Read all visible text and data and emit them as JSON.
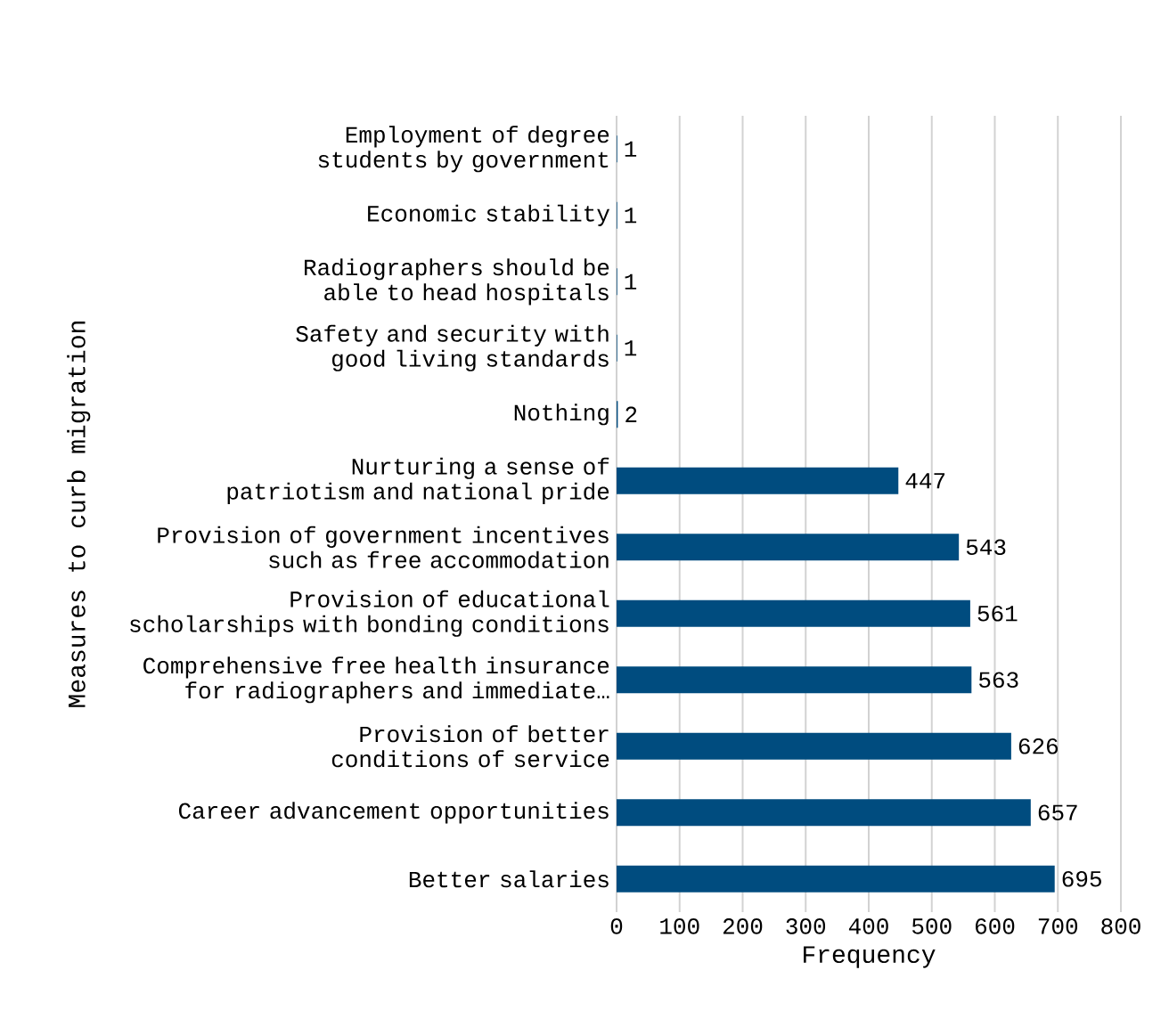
{
  "chart_data": {
    "type": "bar",
    "orientation": "horizontal",
    "xlabel": "Frequency",
    "ylabel": "Measures to curb migration",
    "categories": [
      "Employment of degree students by government",
      "Economic stability",
      "Radiographers should be able to head hospitals",
      "Safety and security with good living standards",
      "Nothing",
      "Nurturing a sense of patriotism and national pride",
      "Provision of government incentives such as free accommodation",
      "Provision of educational scholarships with bonding conditions",
      "Comprehensive free health insurance for radiographers and immediate…",
      "Provision of better conditions of service",
      "Career advancement opportunities",
      "Better salaries"
    ],
    "values": [
      1,
      1,
      1,
      1,
      2,
      447,
      543,
      561,
      563,
      626,
      657,
      695
    ],
    "color": "#004c7f",
    "xlim": [
      0,
      800
    ],
    "xticks": [
      0,
      100,
      200,
      300,
      400,
      500,
      600,
      700,
      800
    ],
    "grid": "x",
    "data_labels": true
  }
}
